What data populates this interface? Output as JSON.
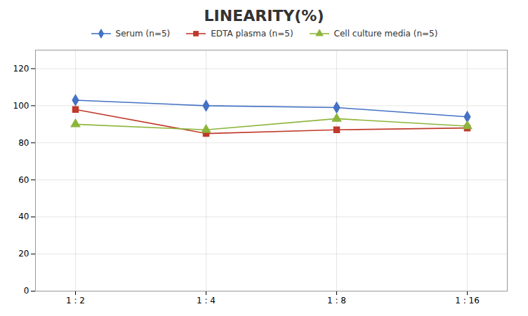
{
  "chart_data": {
    "type": "line",
    "title": "LINEARITY(%)",
    "categories": [
      "1 : 2",
      "1 : 4",
      "1 : 8",
      "1 : 16"
    ],
    "series": [
      {
        "name": "Serum (n=5)",
        "color": "#4472C4",
        "marker": "diamond",
        "values": [
          103,
          100,
          99,
          94
        ]
      },
      {
        "name": "EDTA plasma (n=5)",
        "color": "#C0392B",
        "marker": "square",
        "values": [
          98,
          85,
          87,
          88
        ]
      },
      {
        "name": "Cell culture media (n=5)",
        "color": "#8DB53B",
        "marker": "triangle",
        "values": [
          90,
          87,
          93,
          89
        ]
      }
    ],
    "ylim": [
      0,
      130
    ],
    "yticks": [
      0,
      20,
      40,
      60,
      80,
      100,
      120
    ],
    "grid": true,
    "legend": "top"
  }
}
